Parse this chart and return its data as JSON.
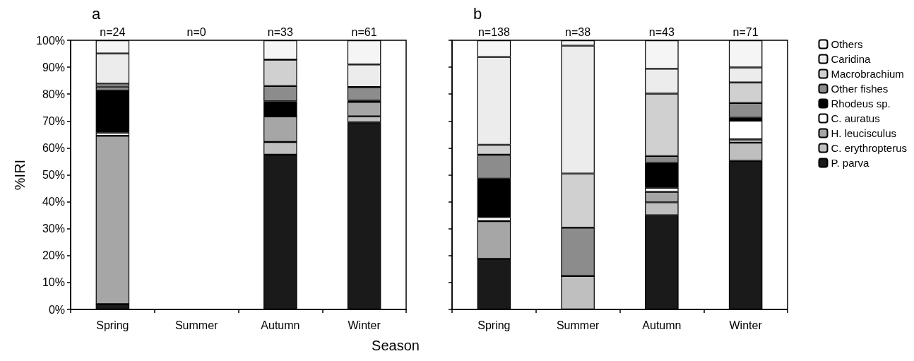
{
  "chart_data": [
    {
      "type": "bar",
      "title": "a",
      "xlabel": "Season",
      "ylabel": "%IRI",
      "stacked": true,
      "categories": [
        "Spring",
        "Summer",
        "Autumn",
        "Winter"
      ],
      "ylim": [
        0,
        100
      ],
      "yticks": [
        {
          "value": 0,
          "label": "0%"
        },
        {
          "value": 10,
          "label": "10%"
        },
        {
          "value": 20,
          "label": "20%"
        },
        {
          "value": 30,
          "label": "30%"
        },
        {
          "value": 40,
          "label": "40%"
        },
        {
          "value": 50,
          "label": "50%"
        },
        {
          "value": 60,
          "label": "60%"
        },
        {
          "value": 70,
          "label": "70%"
        },
        {
          "value": 80,
          "label": "80%"
        },
        {
          "value": 90,
          "label": "90%"
        },
        {
          "value": 100,
          "label": "100%"
        }
      ],
      "grid": false,
      "legend": false,
      "annotations": [
        "n=24",
        "n=0",
        "n=33",
        "n=61"
      ],
      "series": [
        {
          "color": "#1a1a1a",
          "values": [
            2,
            0,
            57.5,
            69.5
          ]
        },
        {
          "color": "#bfbfbf",
          "values": [
            0,
            0,
            4.7,
            2.2
          ]
        },
        {
          "color": "#a6a6a6",
          "values": [
            62.5,
            0,
            9.5,
            5.4
          ]
        },
        {
          "color": "#ffffff",
          "values": [
            1.2,
            0,
            0,
            0
          ]
        },
        {
          "color": "#000000",
          "values": [
            15.6,
            0,
            5.6,
            0.5
          ]
        },
        {
          "color": "#8c8c8c",
          "values": [
            1.5,
            0,
            5.7,
            5
          ]
        },
        {
          "color": "#d0d0d0",
          "values": [
            1.1,
            0,
            9.8,
            0
          ]
        },
        {
          "color": "#ececec",
          "values": [
            11.2,
            0,
            0,
            8.4
          ]
        },
        {
          "color": "#f5f5f5",
          "values": [
            4.9,
            0,
            7.2,
            9
          ]
        }
      ]
    },
    {
      "type": "bar",
      "title": "b",
      "stacked": true,
      "categories": [
        "Spring",
        "Summer",
        "Autumn",
        "Winter"
      ],
      "ylim": [
        0,
        100
      ],
      "yticks": [
        0,
        10,
        20,
        30,
        40,
        50,
        60,
        70,
        80,
        90,
        100
      ],
      "tick_labels": "x",
      "grid": false,
      "legend": "right",
      "annotations": [
        "n=138",
        "n=38",
        "n=43",
        "n=71"
      ],
      "series": [
        {
          "name": "P. parva",
          "color": "#1a1a1a",
          "values": [
            18.8,
            0,
            35,
            55.2
          ]
        },
        {
          "name": "C. erythropterus",
          "color": "#bfbfbf",
          "values": [
            0,
            12.4,
            4.8,
            6.7
          ]
        },
        {
          "name": "H. leucisculus",
          "color": "#a6a6a6",
          "values": [
            14,
            0,
            3.9,
            1.3
          ]
        },
        {
          "name": "C. auratus",
          "color": "#ffffff",
          "values": [
            1.5,
            0,
            1.5,
            6.9
          ]
        },
        {
          "name": "Rhodeus sp.",
          "color": "#000000",
          "values": [
            14.3,
            0,
            9.2,
            1.1
          ]
        },
        {
          "name": "Other fishes",
          "color": "#8c8c8c",
          "values": [
            8.9,
            18,
            2.6,
            5.5
          ]
        },
        {
          "name": "Macrobrachium",
          "color": "#d0d0d0",
          "values": [
            3.7,
            20.1,
            23.2,
            7.6
          ]
        },
        {
          "name": "Caridina",
          "color": "#ececec",
          "values": [
            32.6,
            47.5,
            9.2,
            5.6
          ]
        },
        {
          "name": "Others",
          "color": "#f5f5f5",
          "values": [
            6.2,
            2,
            10.6,
            10.1
          ]
        }
      ]
    }
  ]
}
